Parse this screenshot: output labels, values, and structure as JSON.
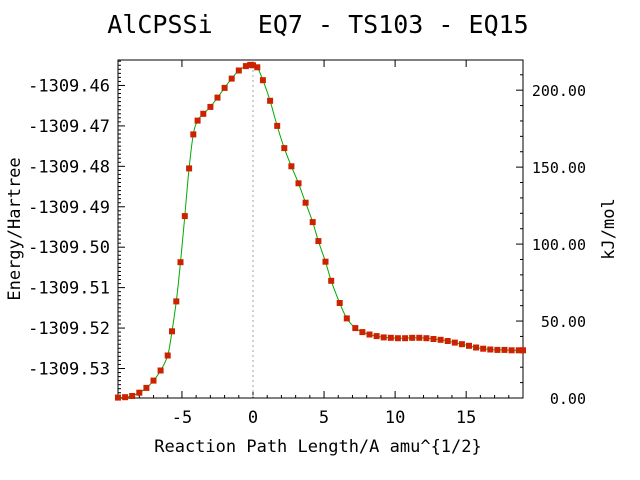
{
  "chart_data": {
    "type": "line",
    "title": "AlCPSSi   EQ7 - TS103 - EQ15",
    "xlabel": "Reaction Path Length/A amu^{1/2}",
    "ylabel": "Energy/Hartree",
    "y2label": "kJ/mol",
    "xlim": [
      -9.5,
      19
    ],
    "ylim": [
      -1309.5373,
      -1309.4537
    ],
    "y2lim": [
      0,
      219.6
    ],
    "x_ticks": [
      -5,
      0,
      5,
      10,
      15
    ],
    "x_tick_labels": [
      "-5",
      "0",
      "5",
      "10",
      "15"
    ],
    "y_ticks": [
      -1309.46,
      -1309.47,
      -1309.48,
      -1309.49,
      -1309.5,
      -1309.51,
      -1309.52,
      -1309.53
    ],
    "y_tick_labels": [
      "-1309.46",
      "-1309.47",
      "-1309.48",
      "-1309.49",
      "-1309.50",
      "-1309.51",
      "-1309.52",
      "-1309.53"
    ],
    "y2_ticks": [
      0,
      50,
      100,
      150,
      200
    ],
    "y2_tick_labels": [
      "0.00",
      "50.00",
      "100.00",
      "150.00",
      "200.00"
    ],
    "ts_marker_x": 0,
    "grid": false,
    "colors": {
      "curve": "#00aa00",
      "points": "#cc2200",
      "ts_line": "#a0a0a0"
    },
    "series": [
      {
        "x": [
          -9.5,
          -9.0,
          -8.5,
          -8.0,
          -7.5,
          -7.0,
          -6.5,
          -6.0,
          -5.7,
          -5.4,
          -5.1,
          -4.8,
          -4.5,
          -4.2,
          -3.9,
          -3.5,
          -3.0,
          -2.5,
          -2.0,
          -1.5,
          -1.0,
          -0.5,
          -0.2,
          0.0,
          0.3,
          0.7,
          1.2,
          1.7,
          2.2,
          2.7,
          3.2,
          3.7,
          4.2,
          4.6,
          5.1,
          5.5,
          6.1,
          6.6,
          7.2,
          7.7,
          8.2,
          8.7,
          9.2,
          9.7,
          10.2,
          10.7,
          11.2,
          11.7,
          12.2,
          12.7,
          13.2,
          13.7,
          14.2,
          14.7,
          15.2,
          15.7,
          16.2,
          16.7,
          17.2,
          17.7,
          18.2,
          18.7,
          19.0
        ],
        "y": [
          -1309.5372,
          -1309.5371,
          -1309.5368,
          -1309.536,
          -1309.5348,
          -1309.533,
          -1309.5305,
          -1309.5268,
          -1309.5208,
          -1309.5134,
          -1309.5037,
          -1309.4923,
          -1309.4805,
          -1309.4721,
          -1309.4687,
          -1309.467,
          -1309.4653,
          -1309.463,
          -1309.4606,
          -1309.4583,
          -1309.4563,
          -1309.4552,
          -1309.4549,
          -1309.455,
          -1309.4555,
          -1309.4587,
          -1309.4638,
          -1309.47,
          -1309.4755,
          -1309.48,
          -1309.4842,
          -1309.489,
          -1309.4938,
          -1309.4985,
          -1309.5036,
          -1309.5083,
          -1309.5138,
          -1309.5176,
          -1309.52,
          -1309.521,
          -1309.5216,
          -1309.522,
          -1309.5223,
          -1309.5224,
          -1309.5225,
          -1309.5225,
          -1309.5224,
          -1309.5224,
          -1309.5225,
          -1309.5227,
          -1309.5229,
          -1309.5232,
          -1309.5236,
          -1309.524,
          -1309.5244,
          -1309.5248,
          -1309.5251,
          -1309.5253,
          -1309.5254,
          -1309.5254,
          -1309.5255,
          -1309.5255,
          -1309.5255
        ]
      }
    ]
  }
}
